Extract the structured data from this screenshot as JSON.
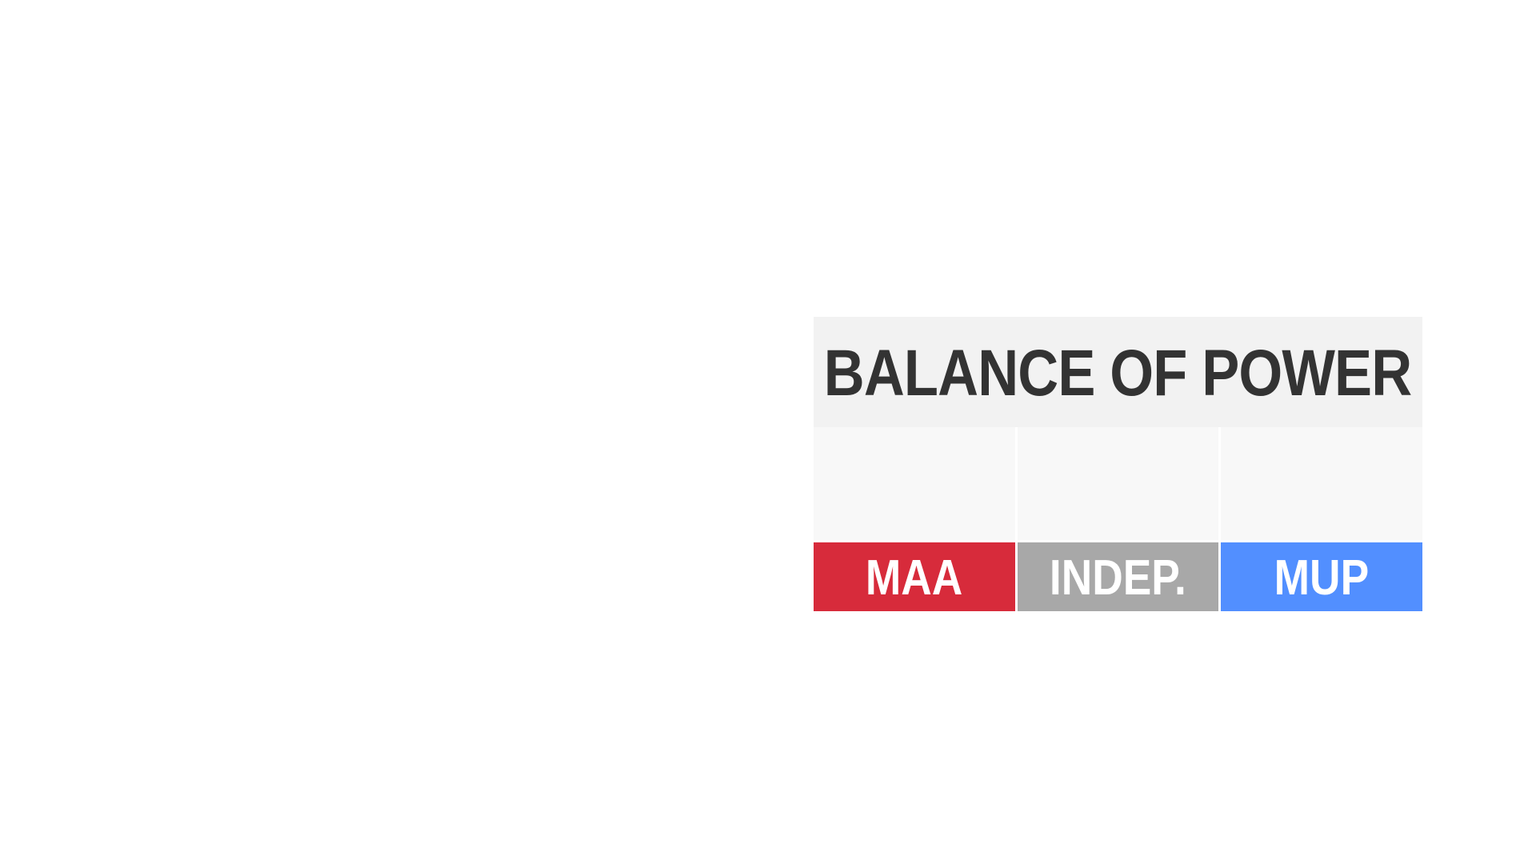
{
  "title": "BALANCE OF POWER",
  "parties": [
    {
      "label": "MAA",
      "color": "#d72b3b"
    },
    {
      "label": "INDEP.",
      "color": "#a8a8a8"
    },
    {
      "label": "MUP",
      "color": "#528fff"
    }
  ]
}
